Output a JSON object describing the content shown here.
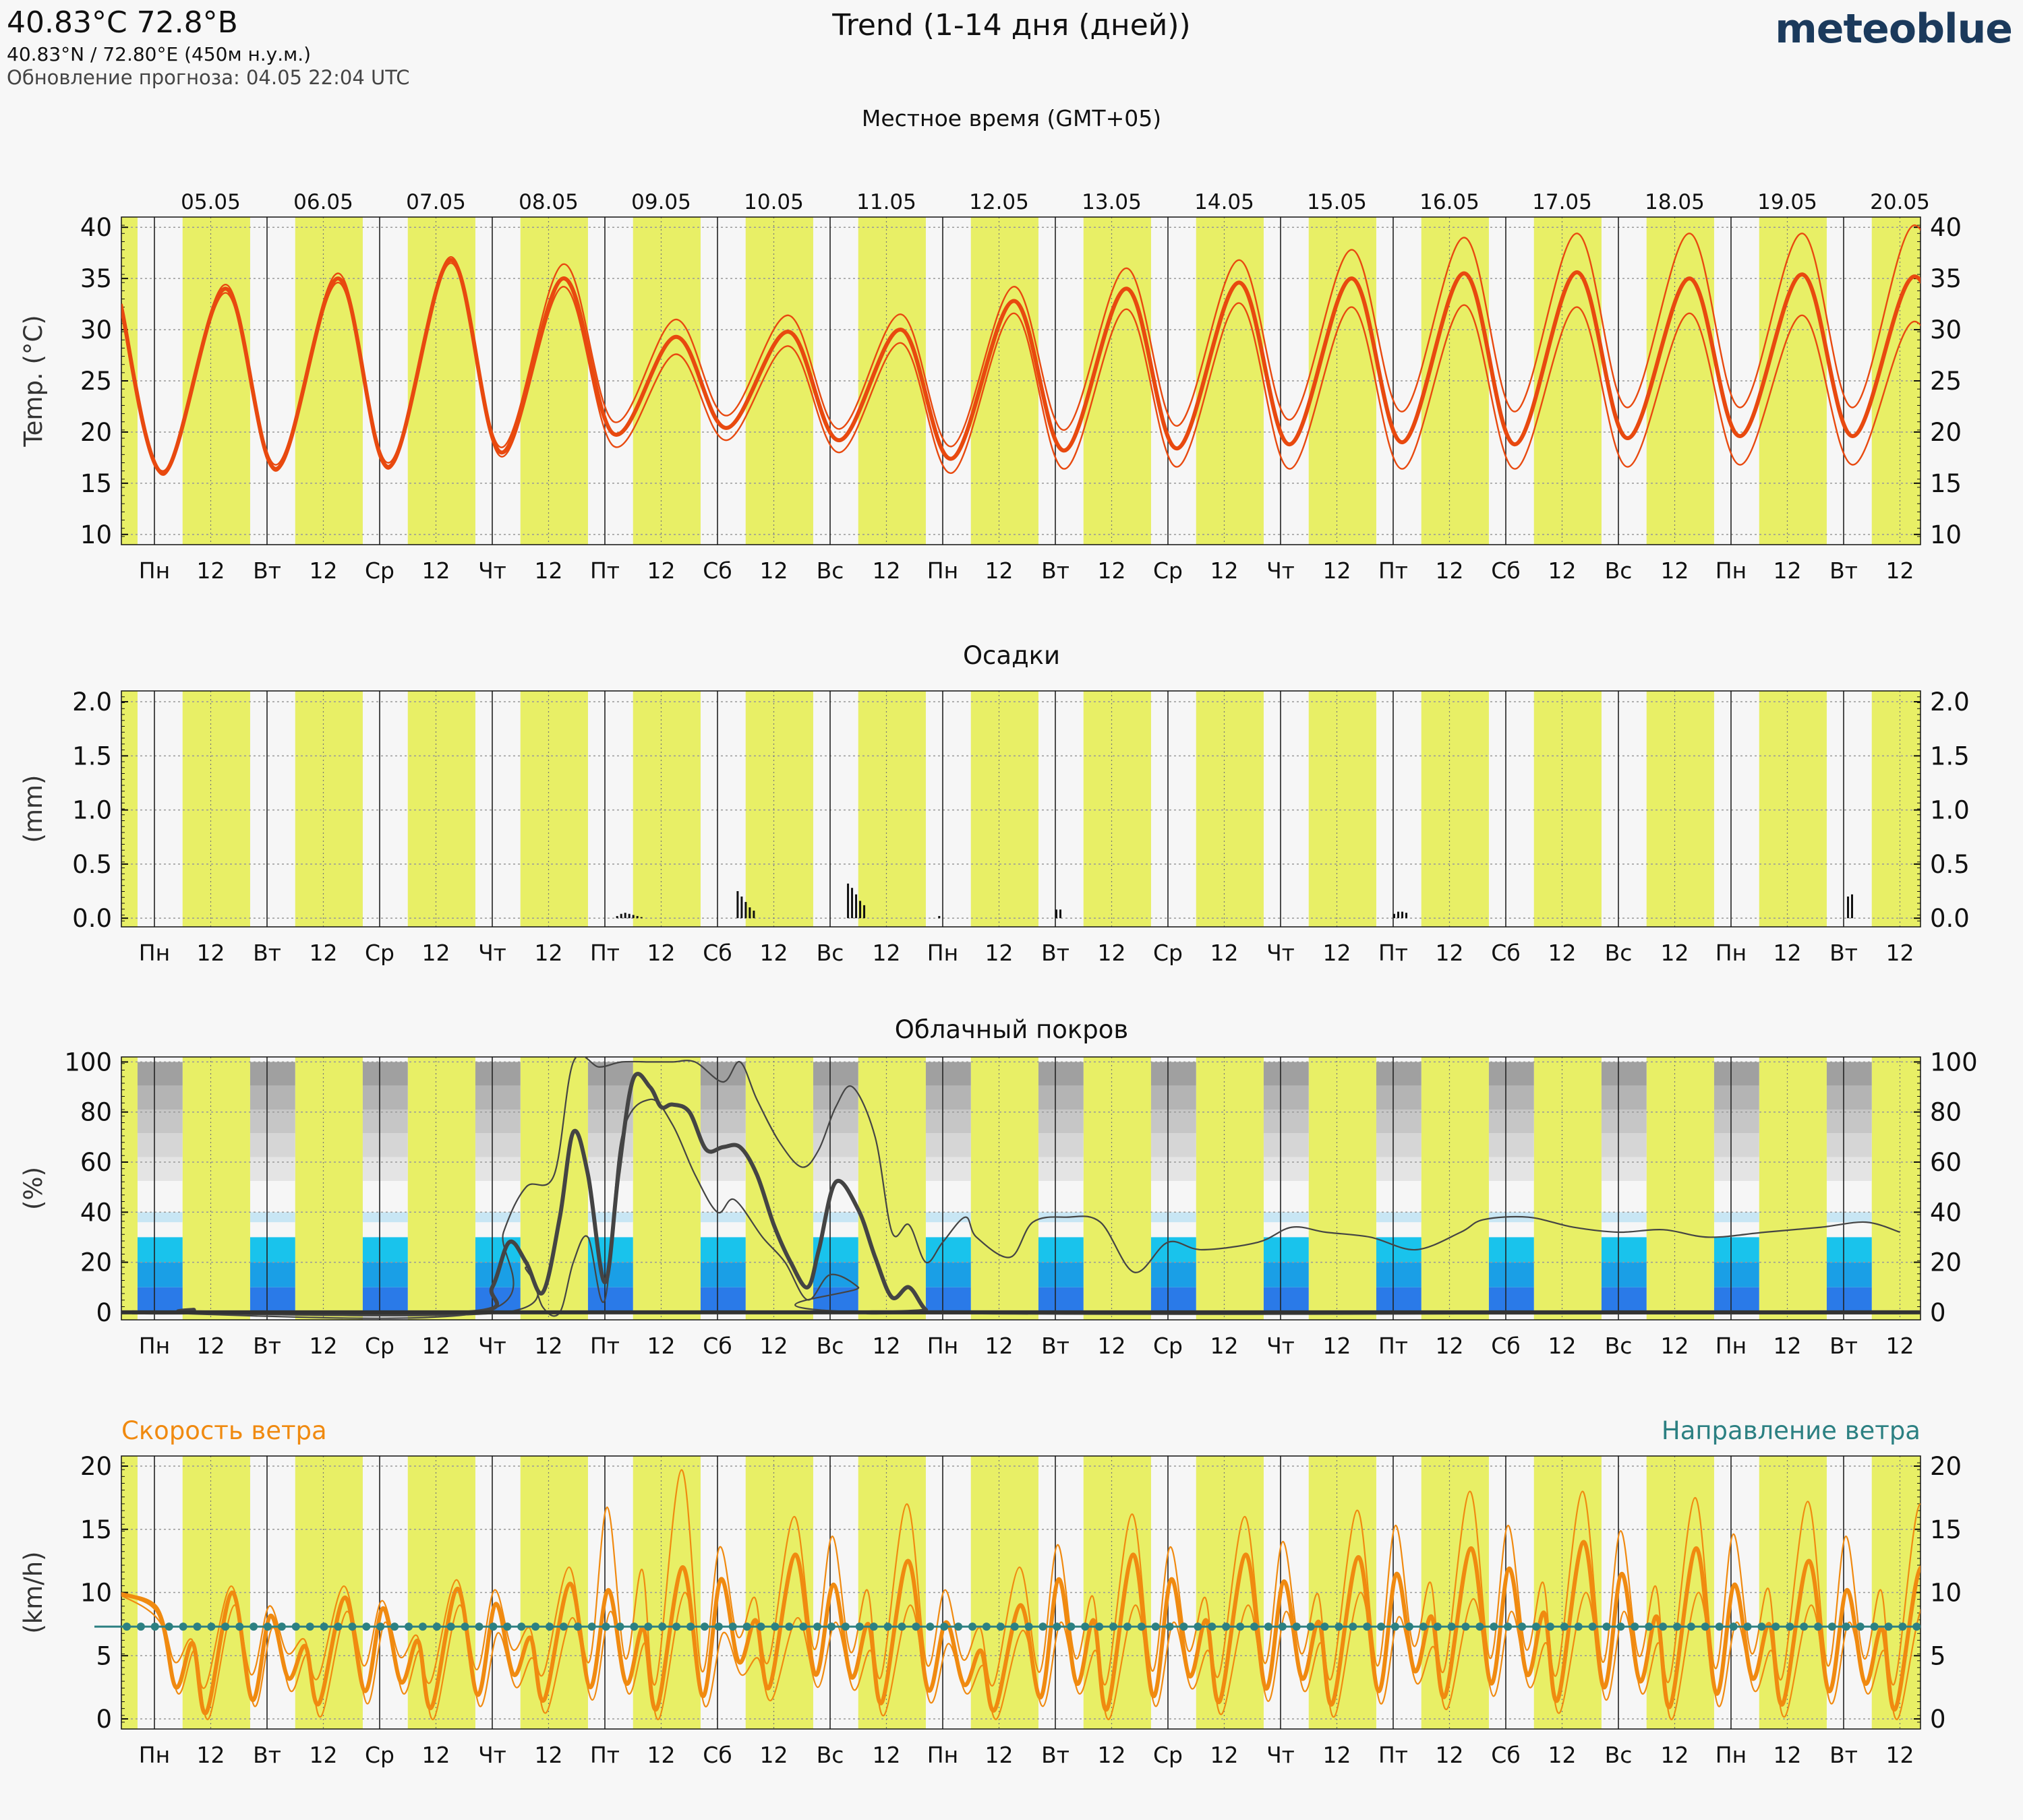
{
  "header": {
    "coords_title": "40.83°C 72.8°В",
    "coords_sub": "40.83°N / 72.80°E (450м н.у.м.)",
    "update": "Обновление прогноза: 04.05 22:04 UTC",
    "chart_title": "Trend (1-14 дня (дней))",
    "logo": "meteoblue",
    "local_time": "Местное время (GMT+05)"
  },
  "colors": {
    "day_band": "#e8ef66",
    "night_band": "#f6f6f6",
    "temp": "#e8490f",
    "wind_speed": "#f08a10",
    "wind_dir": "#2c8082",
    "cloud_line": "#444444"
  },
  "chart_data": [
    {
      "id": "temperature",
      "type": "line",
      "title": "",
      "ylabel": "Temp. (°C)",
      "ylim": [
        9,
        41
      ],
      "yticks": [
        10,
        15,
        20,
        25,
        30,
        35,
        40
      ],
      "dates": [
        "05.05",
        "06.05",
        "07.05",
        "08.05",
        "09.05",
        "10.05",
        "11.05",
        "12.05",
        "13.05",
        "14.05",
        "15.05",
        "16.05",
        "17.05",
        "18.05",
        "19.05",
        "20.05"
      ],
      "weekdays": [
        "Пн",
        "Вт",
        "Ср",
        "Чт",
        "Пт",
        "Сб",
        "Вс",
        "Пн",
        "Вт",
        "Ср",
        "Чт",
        "Пт",
        "Сб",
        "Вс",
        "Пн",
        "Вт"
      ],
      "noon_label": "12",
      "daily_max": [
        34,
        35,
        36.8,
        35,
        29.3,
        29.8,
        30,
        32.8,
        34,
        34.6,
        35,
        35.5,
        35.6,
        35,
        35.4,
        35.2
      ],
      "daily_min": [
        16,
        16.4,
        16.6,
        18,
        19.8,
        20.4,
        19.2,
        17.4,
        18.2,
        18.4,
        18.8,
        19,
        18.8,
        19.4,
        19.6,
        19.6
      ],
      "daily_max_upper": [
        34.4,
        35.5,
        37.1,
        36.4,
        31,
        31.4,
        31.5,
        34.2,
        36,
        36.8,
        37.8,
        39,
        39.4,
        39.4,
        39.4,
        40.2
      ],
      "daily_max_lower": [
        33.6,
        34.6,
        36.5,
        34.2,
        27.6,
        28.4,
        28.7,
        31.6,
        32,
        32.6,
        32.2,
        32.4,
        32.2,
        31.6,
        31.4,
        30.8
      ],
      "daily_min_upper": [
        16.2,
        16.8,
        17,
        18.5,
        21,
        21.6,
        20.3,
        18.6,
        20.2,
        20.6,
        21.2,
        22,
        22,
        22.4,
        22.4,
        22.4
      ],
      "daily_min_lower": [
        15.8,
        16.2,
        16.4,
        17.6,
        18.6,
        19.2,
        18,
        16,
        16.4,
        16.6,
        16.4,
        16.4,
        16.4,
        16.6,
        16.8,
        16.8
      ],
      "start_value": 32.5
    },
    {
      "id": "precipitation",
      "type": "bar",
      "title": "Осадки",
      "ylabel": "(mm)",
      "ylim": [
        -0.08,
        2.1
      ],
      "yticks": [
        "0.0",
        "0.5",
        "1.0",
        "1.5",
        "2.0"
      ],
      "bars": [
        {
          "day": 4.1,
          "values": [
            0.02,
            0.04,
            0.05,
            0.04,
            0.03,
            0.02,
            0.01
          ]
        },
        {
          "day": 5.17,
          "values": [
            0.25,
            0.2,
            0.15,
            0.1,
            0.07
          ]
        },
        {
          "day": 6.15,
          "values": [
            0.32,
            0.28,
            0.22,
            0.16,
            0.12
          ]
        },
        {
          "day": 6.96,
          "values": [
            0.02
          ]
        },
        {
          "day": 8.0,
          "values": [
            0.08,
            0.08
          ]
        },
        {
          "day": 11.0,
          "values": [
            0.04,
            0.06,
            0.06,
            0.05
          ]
        },
        {
          "day": 15.03,
          "values": [
            0.2,
            0.22
          ]
        }
      ]
    },
    {
      "id": "cloud-cover",
      "type": "line",
      "title": "Облачный покров",
      "ylabel": "(%)",
      "ylim": [
        -3,
        102
      ],
      "yticks": [
        0,
        20,
        40,
        60,
        80,
        100
      ],
      "low_cloud_mean": [
        [
          0,
          0
        ],
        [
          0.5,
          0
        ],
        [
          0.55,
          1
        ],
        [
          0.6,
          0
        ],
        [
          3.0,
          0
        ],
        [
          3.2,
          10
        ],
        [
          3.35,
          28
        ],
        [
          3.5,
          20
        ],
        [
          3.65,
          8
        ],
        [
          3.8,
          38
        ],
        [
          3.92,
          72
        ],
        [
          4.05,
          55
        ],
        [
          4.2,
          12
        ],
        [
          4.32,
          55
        ],
        [
          4.45,
          93
        ],
        [
          4.6,
          90
        ],
        [
          4.7,
          82
        ],
        [
          4.8,
          83
        ],
        [
          4.95,
          80
        ],
        [
          5.1,
          65
        ],
        [
          5.25,
          66
        ],
        [
          5.4,
          66
        ],
        [
          5.55,
          55
        ],
        [
          5.7,
          35
        ],
        [
          5.85,
          20
        ],
        [
          6.0,
          10
        ],
        [
          6.1,
          25
        ],
        [
          6.25,
          52
        ],
        [
          6.45,
          41
        ],
        [
          6.6,
          22
        ],
        [
          6.75,
          6
        ],
        [
          6.9,
          10
        ],
        [
          7.05,
          1
        ],
        [
          7.2,
          0
        ],
        [
          15.7,
          0
        ]
      ],
      "low_cloud_upper": [
        [
          0,
          0
        ],
        [
          3.1,
          0
        ],
        [
          3.3,
          32
        ],
        [
          3.5,
          50
        ],
        [
          3.75,
          55
        ],
        [
          3.92,
          100
        ],
        [
          4.15,
          98
        ],
        [
          4.35,
          100
        ],
        [
          4.6,
          100
        ],
        [
          4.8,
          100
        ],
        [
          5.0,
          100
        ],
        [
          5.25,
          92
        ],
        [
          5.4,
          100
        ],
        [
          5.55,
          85
        ],
        [
          5.75,
          68
        ],
        [
          5.95,
          58
        ],
        [
          6.1,
          65
        ],
        [
          6.25,
          82
        ],
        [
          6.4,
          90
        ],
        [
          6.6,
          70
        ],
        [
          6.75,
          32
        ],
        [
          6.9,
          35
        ],
        [
          7.05,
          20
        ],
        [
          7.2,
          28
        ],
        [
          7.4,
          38
        ],
        [
          7.5,
          30
        ],
        [
          7.8,
          22
        ],
        [
          8.0,
          36
        ],
        [
          8.3,
          38
        ],
        [
          8.6,
          36
        ],
        [
          8.9,
          16
        ],
        [
          9.2,
          28
        ],
        [
          9.5,
          25
        ],
        [
          10.0,
          28
        ],
        [
          10.3,
          34
        ],
        [
          10.6,
          32
        ],
        [
          11.0,
          30
        ],
        [
          11.4,
          25
        ],
        [
          11.8,
          32
        ],
        [
          12.0,
          37
        ],
        [
          12.4,
          38
        ],
        [
          12.8,
          34
        ],
        [
          13.2,
          32
        ],
        [
          13.6,
          33
        ],
        [
          14.0,
          30
        ],
        [
          14.5,
          32
        ],
        [
          15.0,
          34
        ],
        [
          15.4,
          36
        ],
        [
          15.7,
          32
        ]
      ],
      "low_cloud_lower": [
        [
          0,
          0
        ],
        [
          3.3,
          0
        ],
        [
          3.5,
          18
        ],
        [
          3.65,
          2
        ],
        [
          3.8,
          0
        ],
        [
          3.92,
          20
        ],
        [
          4.05,
          30
        ],
        [
          4.2,
          5
        ],
        [
          4.35,
          70
        ],
        [
          4.6,
          85
        ],
        [
          4.8,
          75
        ],
        [
          5.0,
          55
        ],
        [
          5.2,
          40
        ],
        [
          5.35,
          45
        ],
        [
          5.6,
          30
        ],
        [
          5.8,
          20
        ],
        [
          6.0,
          5
        ],
        [
          6.2,
          15
        ],
        [
          6.45,
          10
        ],
        [
          6.6,
          0
        ],
        [
          15.7,
          0
        ]
      ],
      "cloud_zero_line": 0
    },
    {
      "id": "wind",
      "type": "line",
      "title": "",
      "left_label": "Скорость ветра",
      "right_label": "Направление ветра",
      "ylabel": "(km/h)",
      "ylim": [
        -0.8,
        20.8
      ],
      "yticks": [
        0,
        5,
        10,
        15,
        20
      ],
      "daily_max": [
        10,
        9.6,
        10.3,
        10.7,
        12,
        13,
        12.5,
        9,
        13,
        13,
        12.8,
        13.5,
        14,
        13.5,
        12.5,
        12
      ],
      "daily_min": [
        0.5,
        1.2,
        0.9,
        1.5,
        0.8,
        2.5,
        1.3,
        0.7,
        0.8,
        1.4,
        1.2,
        1.8,
        1.5,
        1.0,
        1.2,
        0.8
      ],
      "daily_max_upper": [
        10.5,
        10.5,
        11,
        12,
        19.7,
        16,
        17,
        12,
        16.2,
        16,
        16.5,
        18,
        18,
        17.5,
        17.2,
        17
      ],
      "daily_max_lower": [
        9,
        8.5,
        9,
        8,
        10,
        8,
        9,
        7,
        9,
        9,
        10,
        9.5,
        10,
        10,
        9,
        9
      ],
      "direction_series_value": 7.3
    }
  ]
}
